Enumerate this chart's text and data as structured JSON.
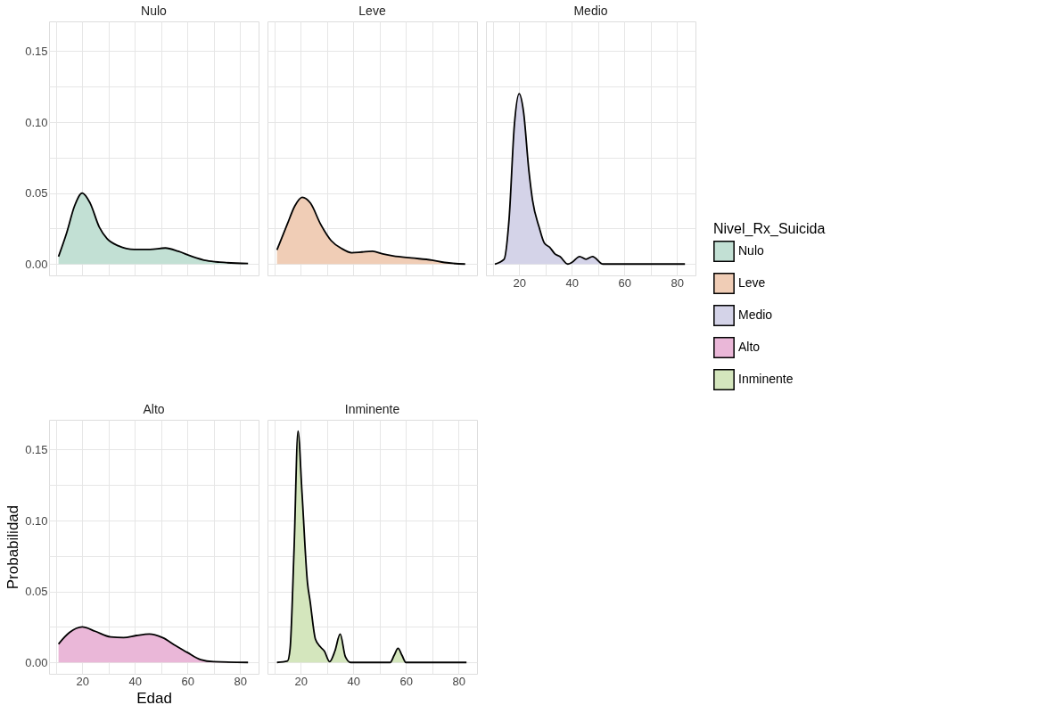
{
  "chart_data": [
    {
      "type": "area",
      "title": "Nulo",
      "xlim": [
        7.4,
        87
      ],
      "ylim": [
        -0.008,
        0.171
      ],
      "grid": true,
      "tick_labels": "y",
      "xticks": [
        {
          "value": 10,
          "label": null
        },
        {
          "value": 20,
          "label": null
        },
        {
          "value": 30,
          "label": null
        },
        {
          "value": 40,
          "label": null
        },
        {
          "value": 50,
          "label": null
        },
        {
          "value": 60,
          "label": null
        },
        {
          "value": 70,
          "label": null
        },
        {
          "value": 80,
          "label": null
        }
      ],
      "yticks": [
        {
          "value": 0,
          "label": "0.00"
        },
        {
          "value": 0.025,
          "label": null
        },
        {
          "value": 0.05,
          "label": "0.05"
        },
        {
          "value": 0.075,
          "label": null
        },
        {
          "value": 0.1,
          "label": "0.10"
        },
        {
          "value": 0.125,
          "label": null
        },
        {
          "value": 0.15,
          "label": "0.15"
        }
      ],
      "series": [
        {
          "name": "Nulo",
          "color": "#c2e0d4",
          "x": [
            11,
            14.1,
            17.1,
            20,
            23,
            26.5,
            29.4,
            33.8,
            39.8,
            45.7,
            51.6,
            56.5,
            61.4,
            67.3,
            72.3,
            83
          ],
          "values": [
            0.0053,
            0.022,
            0.041,
            0.05,
            0.043,
            0.026,
            0.018,
            0.0128,
            0.0103,
            0.0103,
            0.0113,
            0.009,
            0.0056,
            0.0024,
            0.0013,
            0.0004
          ]
        }
      ]
    },
    {
      "type": "area",
      "title": "Leve",
      "xlim": [
        7.4,
        87
      ],
      "ylim": [
        -0.008,
        0.171
      ],
      "grid": true,
      "tick_labels": false,
      "xticks": [
        {
          "value": 10,
          "label": null
        },
        {
          "value": 20,
          "label": null
        },
        {
          "value": 30,
          "label": null
        },
        {
          "value": 40,
          "label": null
        },
        {
          "value": 50,
          "label": null
        },
        {
          "value": 60,
          "label": null
        },
        {
          "value": 70,
          "label": null
        },
        {
          "value": 80,
          "label": null
        }
      ],
      "yticks": [
        {
          "value": 0,
          "label": null
        },
        {
          "value": 0.025,
          "label": null
        },
        {
          "value": 0.05,
          "label": null
        },
        {
          "value": 0.075,
          "label": null
        },
        {
          "value": 0.1,
          "label": null
        },
        {
          "value": 0.125,
          "label": null
        },
        {
          "value": 0.15,
          "label": null
        }
      ],
      "series": [
        {
          "name": "Leve",
          "color": "#f0cdb6",
          "x": [
            11,
            14.9,
            17.8,
            20.6,
            23.7,
            27.6,
            31.6,
            35.5,
            39.4,
            43.3,
            47.3,
            51.2,
            55.1,
            62,
            69.8,
            74.7,
            82.5
          ],
          "values": [
            0.01,
            0.028,
            0.041,
            0.047,
            0.043,
            0.028,
            0.0165,
            0.011,
            0.008,
            0.0085,
            0.009,
            0.0071,
            0.0058,
            0.0043,
            0.0028,
            0.0011,
            0
          ]
        }
      ]
    },
    {
      "type": "area",
      "title": "Medio",
      "xlim": [
        7.4,
        87
      ],
      "ylim": [
        -0.008,
        0.171
      ],
      "grid": true,
      "tick_labels": "x",
      "legend": "right",
      "legend_title": "Nivel_Rx_Suicida",
      "xticks": [
        {
          "value": 10,
          "label": null
        },
        20,
        {
          "value": 30,
          "label": null
        },
        40,
        {
          "value": 50,
          "label": null
        },
        60,
        {
          "value": 70,
          "label": null
        },
        80
      ],
      "yticks": [
        {
          "value": 0,
          "label": null
        },
        {
          "value": 0.025,
          "label": null
        },
        {
          "value": 0.05,
          "label": null
        },
        {
          "value": 0.075,
          "label": null
        },
        {
          "value": 0.1,
          "label": null
        },
        {
          "value": 0.125,
          "label": null
        },
        {
          "value": 0.15,
          "label": null
        }
      ],
      "series": [
        {
          "name": "Medio",
          "color": "#d4d3e8",
          "x": [
            10.8,
            14.3,
            16.2,
            18.2,
            20,
            21.7,
            23.7,
            25.1,
            27.6,
            29.6,
            31.6,
            33.6,
            35.5,
            38.5,
            40,
            43,
            45.4,
            47.9,
            51.9,
            83
          ],
          "values": [
            0,
            0.0034,
            0.032,
            0.098,
            0.12,
            0.107,
            0.066,
            0.045,
            0.026,
            0.0147,
            0.0119,
            0.0072,
            0.0053,
            0,
            0.0011,
            0.0053,
            0.0034,
            0.0053,
            0,
            0
          ]
        }
      ]
    },
    {
      "type": "area",
      "title": "Alto",
      "xlim": [
        7.4,
        87
      ],
      "ylim": [
        -0.008,
        0.171
      ],
      "grid": true,
      "xlabel": "Edad",
      "ylabel": "Probabilidad",
      "xticks": [
        {
          "value": 10,
          "label": null
        },
        20,
        {
          "value": 30,
          "label": null
        },
        40,
        {
          "value": 50,
          "label": null
        },
        60,
        {
          "value": 70,
          "label": null
        },
        80
      ],
      "yticks": [
        {
          "value": 0,
          "label": "0.00"
        },
        {
          "value": 0.025,
          "label": null
        },
        {
          "value": 0.05,
          "label": "0.05"
        },
        {
          "value": 0.075,
          "label": null
        },
        {
          "value": 0.1,
          "label": "0.10"
        },
        {
          "value": 0.125,
          "label": null
        },
        {
          "value": 0.15,
          "label": "0.15"
        }
      ],
      "series": [
        {
          "name": "Alto",
          "color": "#eab7d8",
          "x": [
            11,
            15.1,
            20,
            24.9,
            30.8,
            35.7,
            40.6,
            45.5,
            50.5,
            55.4,
            60,
            65,
            70,
            83
          ],
          "values": [
            0.013,
            0.021,
            0.025,
            0.022,
            0.018,
            0.0175,
            0.019,
            0.02,
            0.0175,
            0.012,
            0.007,
            0.002,
            0.0005,
            0
          ]
        }
      ]
    },
    {
      "type": "area",
      "title": "Inminente",
      "xlim": [
        7.4,
        87
      ],
      "ylim": [
        -0.008,
        0.171
      ],
      "grid": true,
      "tick_labels": "x",
      "xticks": [
        {
          "value": 10,
          "label": null
        },
        20,
        {
          "value": 30,
          "label": null
        },
        40,
        {
          "value": 50,
          "label": null
        },
        60,
        {
          "value": 70,
          "label": null
        },
        80
      ],
      "yticks": [
        {
          "value": 0,
          "label": null
        },
        {
          "value": 0.025,
          "label": null
        },
        {
          "value": 0.05,
          "label": null
        },
        {
          "value": 0.075,
          "label": null
        },
        {
          "value": 0.1,
          "label": null
        },
        {
          "value": 0.125,
          "label": null
        },
        {
          "value": 0.15,
          "label": null
        }
      ],
      "series": [
        {
          "name": "Inminente",
          "color": "#d4e6bd",
          "x": [
            11,
            15,
            16,
            17.5,
            19,
            20.5,
            22.6,
            23.6,
            25.6,
            27.5,
            29,
            31,
            33,
            35,
            37,
            39,
            54,
            55.5,
            57,
            58.5,
            60,
            83
          ],
          "values": [
            0,
            0.001,
            0.01,
            0.08,
            0.163,
            0.12,
            0.056,
            0.043,
            0.0165,
            0.011,
            0.008,
            0.0005,
            0.008,
            0.02,
            0.004,
            0,
            0,
            0.005,
            0.01,
            0.005,
            0,
            0
          ]
        }
      ]
    }
  ]
}
